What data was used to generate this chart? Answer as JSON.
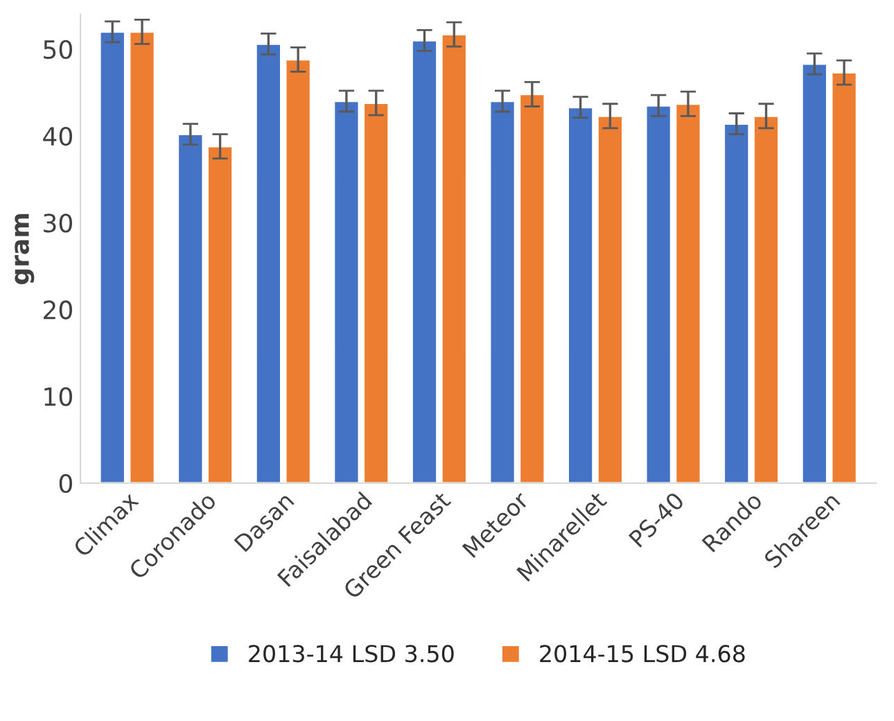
{
  "chart_data": {
    "type": "bar",
    "ylabel": "gram",
    "categories": [
      "Climax",
      "Coronado",
      "Dasan",
      "Faisalabad",
      "Green Feast",
      "Meteor",
      "Minarellet",
      "PS-40",
      "Rando",
      "Shareen"
    ],
    "series": [
      {
        "name": "2013-14 LSD 3.50",
        "color": "#4472c4",
        "values": [
          52.0,
          40.2,
          50.6,
          44.0,
          51.0,
          44.0,
          43.3,
          43.5,
          41.4,
          48.3
        ],
        "errors": [
          1.2,
          1.2,
          1.2,
          1.2,
          1.2,
          1.2,
          1.2,
          1.2,
          1.2,
          1.2
        ]
      },
      {
        "name": "2014-15 LSD 4.68",
        "color": "#ed7d31",
        "values": [
          52.0,
          38.8,
          48.8,
          43.8,
          51.7,
          44.8,
          42.3,
          43.7,
          42.3,
          47.3
        ],
        "errors": [
          1.4,
          1.4,
          1.4,
          1.4,
          1.4,
          1.4,
          1.4,
          1.4,
          1.4,
          1.4
        ]
      }
    ],
    "ylim": [
      0,
      54
    ],
    "yticks": [
      0,
      10,
      20,
      30,
      40,
      50
    ],
    "grid": false,
    "legend": "bottom"
  }
}
